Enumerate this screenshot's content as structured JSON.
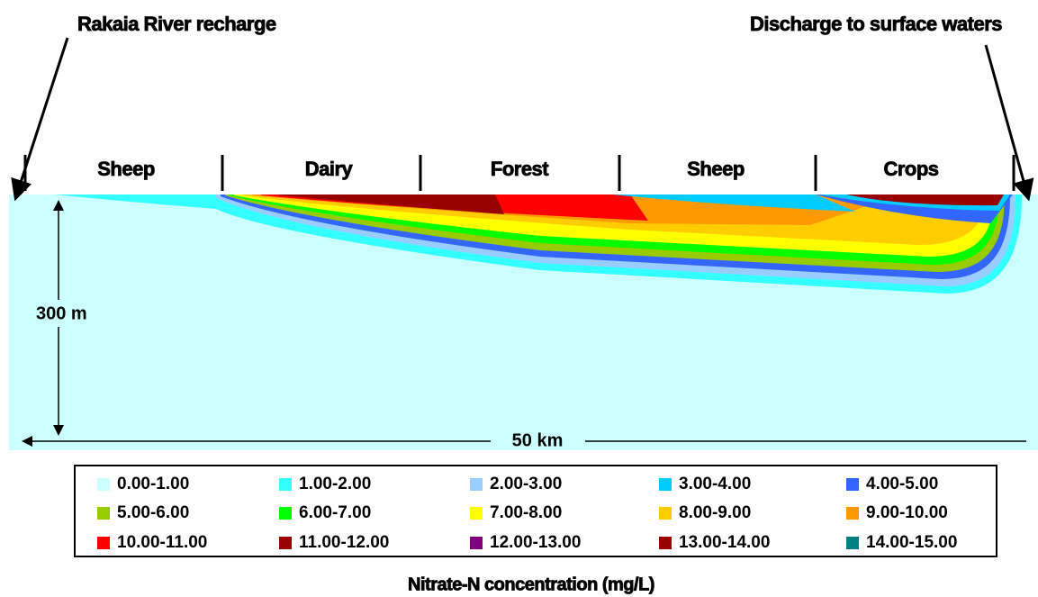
{
  "annotations": {
    "left": "Rakaia River recharge",
    "right": "Discharge to surface waters"
  },
  "land_uses": [
    "Sheep",
    "Dairy",
    "Forest",
    "Sheep",
    "Crops"
  ],
  "scale": {
    "depth": "300 m",
    "length": "50 km"
  },
  "legend": {
    "title": "Nitrate-N concentration (mg/L)",
    "items": [
      {
        "label": "0.00-1.00",
        "color": "#ccffff"
      },
      {
        "label": "1.00-2.00",
        "color": "#33ffff"
      },
      {
        "label": "2.00-3.00",
        "color": "#99ccff"
      },
      {
        "label": "3.00-4.00",
        "color": "#00ccff"
      },
      {
        "label": "4.00-5.00",
        "color": "#3366ff"
      },
      {
        "label": "5.00-6.00",
        "color": "#99cc00"
      },
      {
        "label": "6.00-7.00",
        "color": "#00ff00"
      },
      {
        "label": "7.00-8.00",
        "color": "#ffff00"
      },
      {
        "label": "8.00-9.00",
        "color": "#ffcc00"
      },
      {
        "label": "9.00-10.00",
        "color": "#ff9900"
      },
      {
        "label": "10.00-11.00",
        "color": "#ff0000"
      },
      {
        "label": "11.00-12.00",
        "color": "#990000"
      },
      {
        "label": "12.00-13.00",
        "color": "#800080"
      },
      {
        "label": "13.00-14.00",
        "color": "#990000"
      },
      {
        "label": "14.00-15.00",
        "color": "#008080"
      }
    ]
  }
}
